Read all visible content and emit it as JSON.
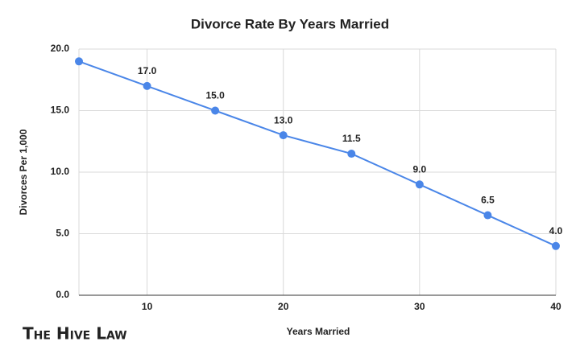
{
  "chart_data": {
    "type": "line",
    "title": "Divorce Rate By Years Married",
    "x_label": "Years Married",
    "y_label": "Divorces Per 1,000",
    "x": [
      5,
      10,
      15,
      20,
      25,
      30,
      35,
      40
    ],
    "series": [
      {
        "name": "Divorces Per 1,000",
        "color": "#4a86e8",
        "values": [
          19,
          17,
          15,
          13,
          11.5,
          9,
          6.5,
          4
        ],
        "value_labels": [
          null,
          "17.0",
          "15.0",
          "13.0",
          "11.5",
          "9.0",
          "6.5",
          "4.0"
        ]
      }
    ],
    "xlim": [
      5,
      40
    ],
    "xticks": [
      10,
      20,
      30,
      40
    ],
    "ylim": [
      0,
      20
    ],
    "yticks": [
      {
        "value": 0,
        "label": "0.0"
      },
      {
        "value": 5,
        "label": "5.0"
      },
      {
        "value": 10,
        "label": "10.0"
      },
      {
        "value": 15,
        "label": "15.0"
      },
      {
        "value": 20,
        "label": "20.0"
      }
    ],
    "grid": true
  },
  "brand": "The Hive Law"
}
